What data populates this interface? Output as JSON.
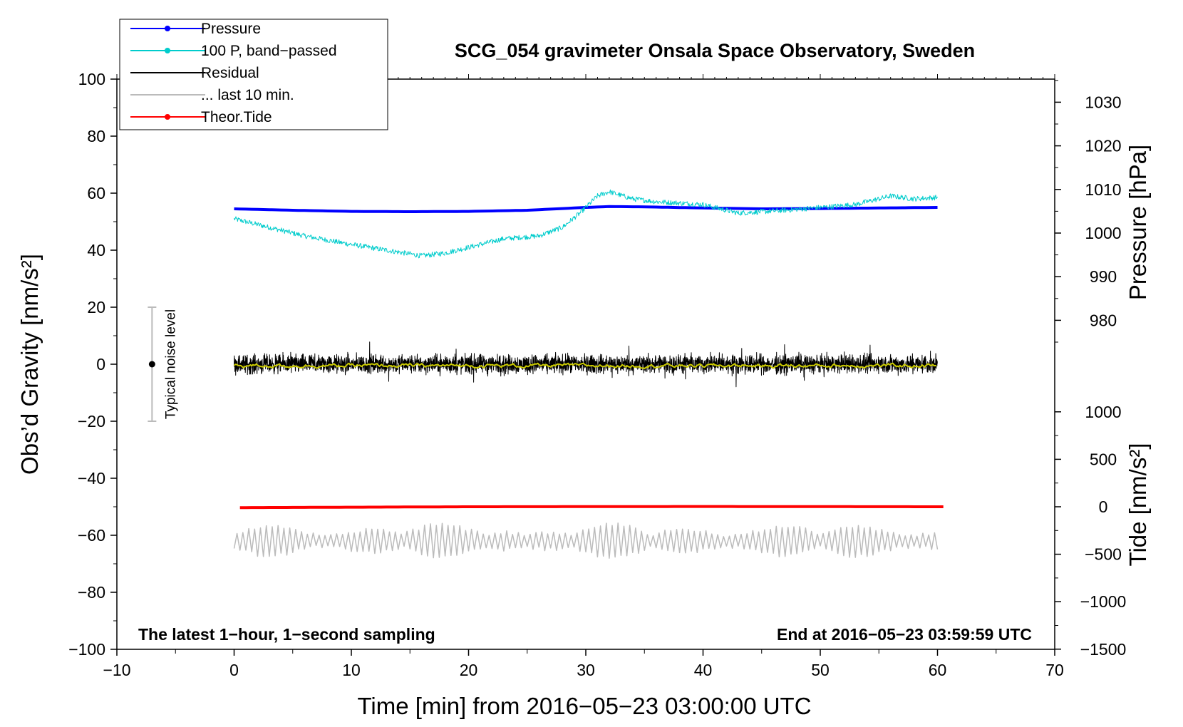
{
  "chart_data": {
    "type": "line",
    "title": "SCG_054 gravimeter Onsala Space Observatory, Sweden",
    "xlabel": "Time [min] from 2016−05−23 03:00:00 UTC",
    "ylabel_left": "Obs’d Gravity [nm/s²]",
    "ylabel_right_top": "Pressure [hPa]",
    "ylabel_right_bottom": "Tide [nm/s²]",
    "xlim": [
      -10,
      70
    ],
    "ylim": [
      -100,
      100
    ],
    "xticks": [
      -10,
      0,
      10,
      20,
      30,
      40,
      50,
      60,
      70
    ],
    "xtick_labels": [
      "−10",
      "0",
      "10",
      "20",
      "30",
      "40",
      "50",
      "60",
      "70"
    ],
    "yticks": [
      -100,
      -80,
      -60,
      -40,
      -20,
      0,
      20,
      40,
      60,
      80,
      100
    ],
    "ytick_labels": [
      "−100",
      "−80",
      "−60",
      "−40",
      "−20",
      "0",
      "20",
      "40",
      "60",
      "80",
      "100"
    ],
    "pressure_axis": {
      "gravity_at_1000hPa": 46.0,
      "gravity_per_hPa": 1.53,
      "ticks": [
        980,
        990,
        1000,
        1010,
        1020,
        1030
      ],
      "tick_labels": [
        "980",
        "990",
        "1000",
        "1010",
        "1020",
        "1030"
      ]
    },
    "tide_axis": {
      "gravity_at_0": -50.0,
      "gravity_per_1000": 33.3,
      "ticks": [
        -1500,
        -1000,
        -500,
        0,
        500,
        1000
      ],
      "tick_labels": [
        "−1500",
        "−1000",
        "−500",
        "0",
        "500",
        "1000"
      ]
    },
    "legend": [
      {
        "label": "Pressure",
        "color": "#0000ff",
        "marker": "dot"
      },
      {
        "label": "100 P, band−passed",
        "color": "#00cccc",
        "marker": "dot"
      },
      {
        "label": "Residual",
        "color": "#000000",
        "marker": "none"
      },
      {
        "label": "... last 10 min.",
        "color": "#bbbbbb",
        "marker": "none"
      },
      {
        "label": "Theor.Tide",
        "color": "#ff0000",
        "marker": "dot"
      }
    ],
    "series": [
      {
        "name": "Pressure",
        "color": "#0000ff",
        "units": "nm/s2",
        "x": [
          0,
          5,
          10,
          15,
          20,
          25,
          30,
          32,
          35,
          40,
          45,
          50,
          55,
          60
        ],
        "y": [
          54.5,
          54.0,
          53.6,
          53.5,
          53.6,
          54.0,
          55.0,
          55.3,
          55.2,
          54.8,
          54.5,
          54.6,
          54.8,
          55.0
        ]
      },
      {
        "name": "100 P, band−passed",
        "color": "#00cccc",
        "units": "nm/s2",
        "x": [
          0,
          3,
          6,
          10,
          13,
          16,
          18,
          20,
          23,
          26,
          28,
          29.5,
          31,
          32,
          34,
          36,
          40,
          43,
          47,
          50,
          53,
          56,
          58,
          60
        ],
        "y": [
          51,
          48,
          45,
          42,
          40,
          38,
          39,
          41,
          44,
          45,
          48,
          53,
          59,
          60.5,
          58,
          57,
          56,
          53,
          54,
          55,
          56,
          59,
          58,
          58.5
        ]
      },
      {
        "name": "Residual",
        "color": "#000000",
        "units": "nm/s2",
        "x_range": [
          0,
          60
        ],
        "center": 0,
        "amplitude": 5
      },
      {
        "name": "Residual (smoothed)",
        "color": "#cccc00",
        "units": "nm/s2",
        "x_range": [
          0,
          60
        ],
        "center": -0.5,
        "amplitude": 1
      },
      {
        "name": "... last 10 min.",
        "color": "#bbbbbb",
        "units": "nm/s2",
        "x_range": [
          0,
          60
        ],
        "center": -62,
        "amplitude": 6
      },
      {
        "name": "Theor.Tide",
        "color": "#ff0000",
        "units": "nm/s2",
        "x": [
          0.5,
          20,
          40,
          60.5
        ],
        "y": [
          -50.3,
          -50.0,
          -49.9,
          -50.0
        ]
      }
    ],
    "noise_indicator": {
      "label": "Typical noise level",
      "x": -7,
      "y": 0,
      "y_range": [
        -20,
        20
      ]
    },
    "annotations": {
      "left": "The latest 1−hour, 1−second sampling",
      "right": "End at 2016−05−23 03:59:59 UTC"
    }
  }
}
